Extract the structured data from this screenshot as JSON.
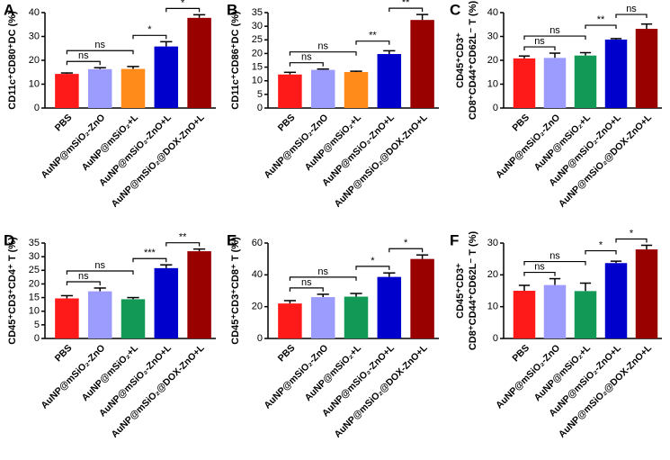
{
  "chart_data": [
    {
      "type": "bar",
      "panel_label": "A",
      "ylabel": "CD11c⁺CD80⁺DC (%)",
      "categories": [
        "PBS",
        "AuNP@mSiO₂-ZnO",
        "AuNP@mSiO₂+L",
        "AuNP@mSiO₂-ZnO+L",
        "AuNP@mSiO₂@DOX-ZnO+L"
      ],
      "values": [
        14.3,
        16.3,
        16.4,
        25.8,
        37.8
      ],
      "errors": [
        0.4,
        0.6,
        1.0,
        2.0,
        1.3
      ],
      "colors": [
        "#ff1a1a",
        "#9c9cff",
        "#ff8c1a",
        "#0000cc",
        "#990000"
      ],
      "ylim": [
        0,
        40
      ],
      "yticks": [
        0,
        10,
        20,
        30,
        40
      ],
      "annotations": [
        {
          "from": 0,
          "to": 1,
          "label": "ns"
        },
        {
          "from": 0,
          "to": 2,
          "label": "ns"
        },
        {
          "from": 2,
          "to": 3,
          "label": "*"
        },
        {
          "from": 3,
          "to": 4,
          "label": "*"
        }
      ]
    },
    {
      "type": "bar",
      "panel_label": "B",
      "ylabel": "CD11c⁺CD86⁺DC (%)",
      "categories": [
        "PBS",
        "AuNP@mSiO₂-ZnO",
        "AuNP@mSiO₂+L",
        "AuNP@mSiO₂-ZnO+L",
        "AuNP@mSiO₂@DOX-ZnO+L"
      ],
      "values": [
        12.3,
        14.0,
        13.2,
        19.8,
        32.3
      ],
      "errors": [
        0.8,
        0.3,
        0.3,
        1.2,
        2.0
      ],
      "colors": [
        "#ff1a1a",
        "#9c9cff",
        "#ff8c1a",
        "#0000cc",
        "#990000"
      ],
      "ylim": [
        0,
        35
      ],
      "yticks": [
        0,
        5,
        10,
        15,
        20,
        25,
        30,
        35
      ],
      "annotations": [
        {
          "from": 0,
          "to": 1,
          "label": "ns"
        },
        {
          "from": 0,
          "to": 2,
          "label": "ns"
        },
        {
          "from": 2,
          "to": 3,
          "label": "**"
        },
        {
          "from": 3,
          "to": 4,
          "label": "**"
        }
      ]
    },
    {
      "type": "bar",
      "panel_label": "C",
      "ylabel": [
        "CD45⁺CD3⁺",
        "CD8⁺CD44⁺CD62L⁻ T (%)"
      ],
      "categories": [
        "PBS",
        "AuNP@mSiO₂-ZnO",
        "AuNP@mSiO₂+L",
        "AuNP@mSiO₂-ZnO+L",
        "AuNP@mSiO₂@DOX-ZnO+L"
      ],
      "values": [
        20.8,
        21.0,
        22.0,
        28.7,
        33.2
      ],
      "errors": [
        1.0,
        2.0,
        1.2,
        0.4,
        2.0
      ],
      "colors": [
        "#ff1a1a",
        "#9c9cff",
        "#119955",
        "#0000cc",
        "#990000"
      ],
      "ylim": [
        0,
        40
      ],
      "yticks": [
        0,
        10,
        20,
        30,
        40
      ],
      "annotations": [
        {
          "from": 0,
          "to": 1,
          "label": "ns"
        },
        {
          "from": 0,
          "to": 2,
          "label": "ns"
        },
        {
          "from": 2,
          "to": 3,
          "label": "**"
        },
        {
          "from": 3,
          "to": 4,
          "label": "ns"
        }
      ]
    },
    {
      "type": "bar",
      "panel_label": "D",
      "ylabel": "CD45⁺CD3⁺CD4⁺ T (%)",
      "categories": [
        "PBS",
        "AuNP@mSiO₂-ZnO",
        "AuNP@mSiO₂+L",
        "AuNP@mSiO₂-ZnO+L",
        "AuNP@mSiO₂@DOX-ZnO+L"
      ],
      "values": [
        14.7,
        17.3,
        14.4,
        25.8,
        32.0
      ],
      "errors": [
        1.0,
        1.2,
        0.6,
        1.2,
        0.8
      ],
      "colors": [
        "#ff1a1a",
        "#9c9cff",
        "#119955",
        "#0000cc",
        "#990000"
      ],
      "ylim": [
        0,
        35
      ],
      "yticks": [
        0,
        5,
        10,
        15,
        20,
        25,
        30,
        35
      ],
      "annotations": [
        {
          "from": 0,
          "to": 1,
          "label": "ns"
        },
        {
          "from": 0,
          "to": 2,
          "label": "ns"
        },
        {
          "from": 2,
          "to": 3,
          "label": "***"
        },
        {
          "from": 3,
          "to": 4,
          "label": "**"
        }
      ]
    },
    {
      "type": "bar",
      "panel_label": "E",
      "ylabel": "CD45⁺CD3⁺CD8⁺ T (%)",
      "categories": [
        "PBS",
        "AuNP@mSiO₂-ZnO",
        "AuNP@mSiO₂+L",
        "AuNP@mSiO₂-ZnO+L",
        "AuNP@mSiO₂@DOX-ZnO+L"
      ],
      "values": [
        22.0,
        26.0,
        26.3,
        38.7,
        50.0
      ],
      "errors": [
        1.8,
        1.8,
        2.0,
        2.5,
        2.5
      ],
      "colors": [
        "#ff1a1a",
        "#9c9cff",
        "#119955",
        "#0000cc",
        "#990000"
      ],
      "ylim": [
        0,
        60
      ],
      "yticks": [
        0,
        20,
        40,
        60
      ],
      "annotations": [
        {
          "from": 0,
          "to": 1,
          "label": "ns"
        },
        {
          "from": 0,
          "to": 2,
          "label": "ns"
        },
        {
          "from": 2,
          "to": 3,
          "label": "*"
        },
        {
          "from": 3,
          "to": 4,
          "label": "*"
        }
      ]
    },
    {
      "type": "bar",
      "panel_label": "F",
      "ylabel": [
        "CD45⁺CD3⁺",
        "CD8⁺CD44⁺CD62L⁻ T (%)"
      ],
      "categories": [
        "PBS",
        "AuNP@mSiO₂-ZnO",
        "AuNP@mSiO₂+L",
        "AuNP@mSiO₂-ZnO+L",
        "AuNP@mSiO₂@DOX-ZnO+L"
      ],
      "values": [
        15.0,
        16.8,
        14.9,
        23.7,
        28.0
      ],
      "errors": [
        1.7,
        2.0,
        2.5,
        0.6,
        1.3
      ],
      "colors": [
        "#ff1a1a",
        "#9c9cff",
        "#119955",
        "#0000cc",
        "#990000"
      ],
      "ylim": [
        0,
        30
      ],
      "yticks": [
        0,
        10,
        20,
        30
      ],
      "annotations": [
        {
          "from": 0,
          "to": 1,
          "label": "ns"
        },
        {
          "from": 0,
          "to": 2,
          "label": "ns"
        },
        {
          "from": 2,
          "to": 3,
          "label": "*"
        },
        {
          "from": 3,
          "to": 4,
          "label": "*"
        }
      ]
    }
  ]
}
